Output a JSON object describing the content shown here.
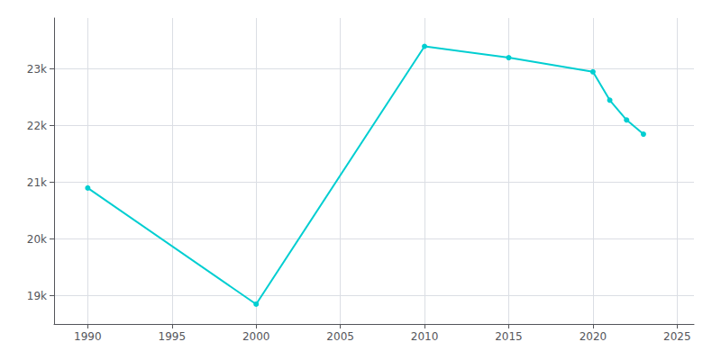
{
  "chart_data": {
    "type": "line",
    "x": [
      1990,
      2000,
      2010,
      2015,
      2020,
      2021,
      2022,
      2023
    ],
    "values": [
      20900,
      18850,
      23400,
      23200,
      22950,
      22450,
      22100,
      21850
    ],
    "color": "#00CED1",
    "marker": "circle",
    "xlim": [
      1988,
      2026
    ],
    "xticks": [
      1990,
      1995,
      2000,
      2005,
      2010,
      2015,
      2020,
      2025
    ],
    "ylim": [
      18500,
      23900
    ],
    "yticks": [
      {
        "value": 19000,
        "label": "19k"
      },
      {
        "value": 20000,
        "label": "20k"
      },
      {
        "value": 21000,
        "label": "21k"
      },
      {
        "value": 22000,
        "label": "22k"
      },
      {
        "value": 23000,
        "label": "23k"
      }
    ],
    "grid": true
  }
}
